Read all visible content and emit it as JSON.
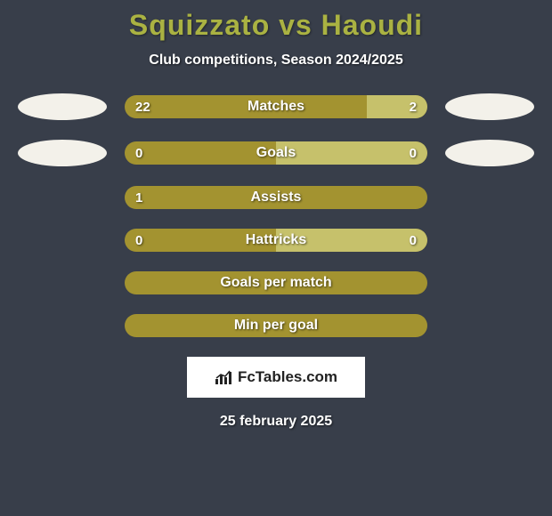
{
  "background_color": "#383e4a",
  "title_color": "#aab242",
  "player1": "Squizzato",
  "player2": "Haoudi",
  "subtitle": "Club competitions, Season 2024/2025",
  "bar_base_color": "#a39330",
  "bar_left_fill_color": "#a39330",
  "bar_right_fill_color": "#c6c16b",
  "ellipse_color": "#f3f1ea",
  "rows": [
    {
      "label": "Matches",
      "left": "22",
      "right": "2",
      "left_pct": 80,
      "right_pct": 20,
      "show_ellipses": true,
      "show_values": true
    },
    {
      "label": "Goals",
      "left": "0",
      "right": "0",
      "left_pct": 50,
      "right_pct": 50,
      "show_ellipses": true,
      "show_values": true
    },
    {
      "label": "Assists",
      "left": "1",
      "right": "",
      "left_pct": 100,
      "right_pct": 0,
      "show_ellipses": false,
      "show_values": true
    },
    {
      "label": "Hattricks",
      "left": "0",
      "right": "0",
      "left_pct": 50,
      "right_pct": 50,
      "show_ellipses": false,
      "show_values": true
    },
    {
      "label": "Goals per match",
      "left": "",
      "right": "",
      "left_pct": 100,
      "right_pct": 0,
      "show_ellipses": false,
      "show_values": false
    },
    {
      "label": "Min per goal",
      "left": "",
      "right": "",
      "left_pct": 100,
      "right_pct": 0,
      "show_ellipses": false,
      "show_values": false
    }
  ],
  "logo_text": "FcTables.com",
  "date_text": "25 february 2025",
  "text_color": "#ffffff",
  "font_family": "Arial, Helvetica, sans-serif"
}
